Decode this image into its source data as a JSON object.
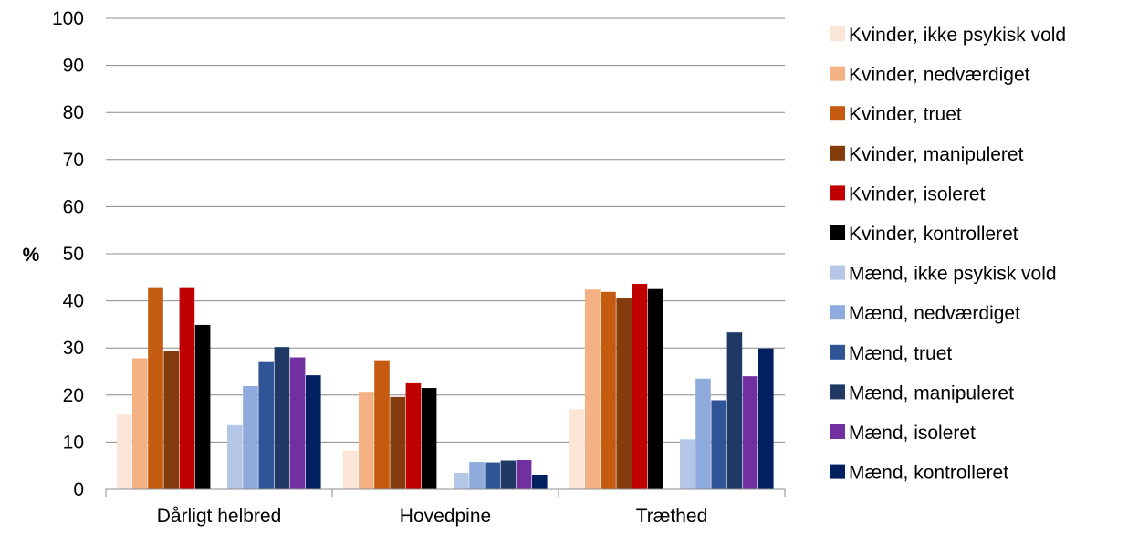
{
  "chart_data": {
    "type": "bar",
    "title": "",
    "xlabel": "",
    "ylabel": "%",
    "ylim": [
      0,
      100
    ],
    "yticks": [
      "0",
      "10",
      "20",
      "30",
      "40",
      "50",
      "60",
      "70",
      "80",
      "90",
      "100"
    ],
    "grid": true,
    "legend_position": "right",
    "categories": [
      "Dårligt helbred",
      "Hovedpine",
      "Træthed"
    ],
    "series": [
      {
        "name": "Kvinder, ikke psykisk vold",
        "color": "#fbe5d6",
        "values": [
          16,
          8.2,
          17
        ]
      },
      {
        "name": "Kvinder, nedværdiget",
        "color": "#f4b183",
        "values": [
          27.8,
          20.7,
          42.4
        ]
      },
      {
        "name": "Kvinder, truet",
        "color": "#c55a11",
        "values": [
          42.9,
          27.4,
          41.9
        ]
      },
      {
        "name": "Kvinder, manipuleret",
        "color": "#843c0c",
        "values": [
          29.4,
          19.6,
          40.5
        ]
      },
      {
        "name": "Kvinder, isoleret",
        "color": "#c00000",
        "values": [
          42.9,
          22.5,
          43.6
        ]
      },
      {
        "name": "Kvinder, kontrolleret",
        "color": "#000000",
        "values": [
          34.9,
          21.5,
          42.5
        ]
      },
      {
        "name": "Mænd, ikke psykisk vold",
        "color": "#b4c7e7",
        "values": [
          13.6,
          3.5,
          10.6
        ]
      },
      {
        "name": "Mænd, nedværdiget",
        "color": "#8faadc",
        "values": [
          21.9,
          5.8,
          23.5
        ]
      },
      {
        "name": "Mænd, truet",
        "color": "#2f5597",
        "values": [
          27,
          5.7,
          18.9
        ]
      },
      {
        "name": "Mænd, manipuleret",
        "color": "#203864",
        "values": [
          30.2,
          6.1,
          33.3
        ]
      },
      {
        "name": "Mænd, isoleret",
        "color": "#7030a0",
        "values": [
          28,
          6.2,
          24
        ]
      },
      {
        "name": "Mænd, kontrolleret",
        "color": "#002060",
        "values": [
          24.2,
          3.1,
          29.9
        ]
      }
    ]
  }
}
